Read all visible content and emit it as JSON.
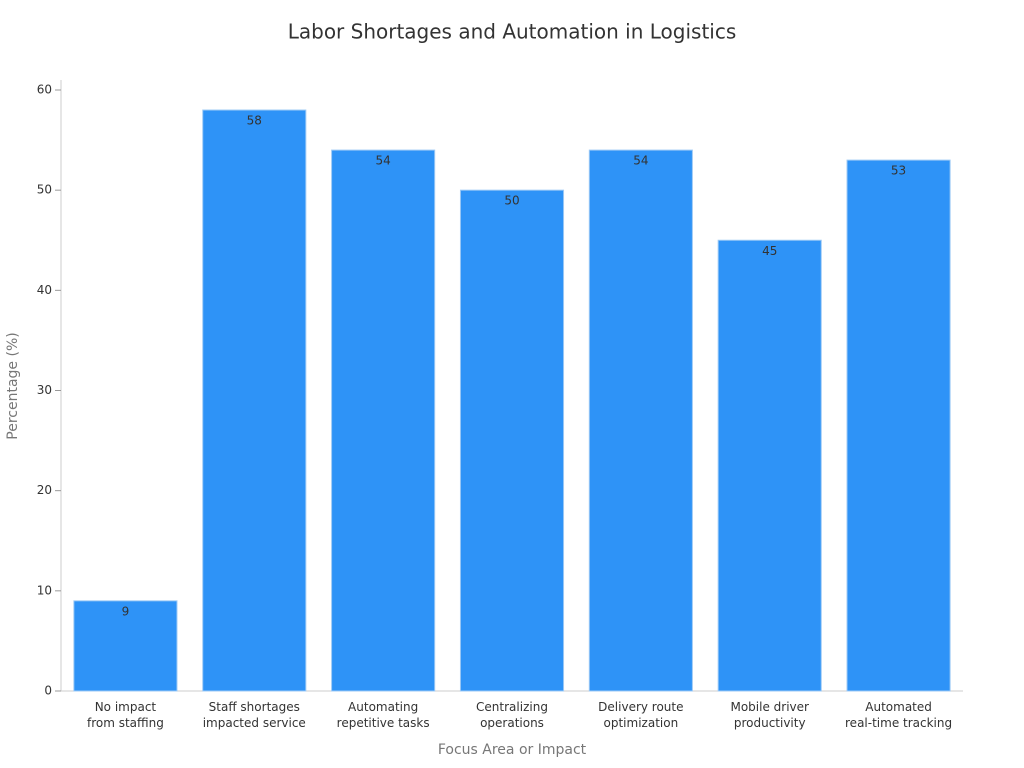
{
  "chart_data": {
    "type": "bar",
    "title": "Labor Shortages and Automation in Logistics",
    "x_label": "Focus Area or Impact",
    "y_label": "Percentage (%)",
    "categories": [
      [
        "No impact",
        "from staffing"
      ],
      [
        "Staff shortages",
        "impacted service"
      ],
      [
        "Automating",
        "repetitive tasks"
      ],
      [
        "Centralizing",
        "operations"
      ],
      [
        "Delivery route",
        "optimization"
      ],
      [
        "Mobile driver",
        "productivity"
      ],
      [
        "Automated",
        "real-time tracking"
      ]
    ],
    "values": [
      9,
      58,
      54,
      50,
      54,
      45,
      53
    ],
    "color": "#2e93f7",
    "ylim": [
      0,
      60
    ],
    "yticks": [
      0,
      10,
      20,
      30,
      40,
      50,
      60
    ],
    "grid": false
  }
}
